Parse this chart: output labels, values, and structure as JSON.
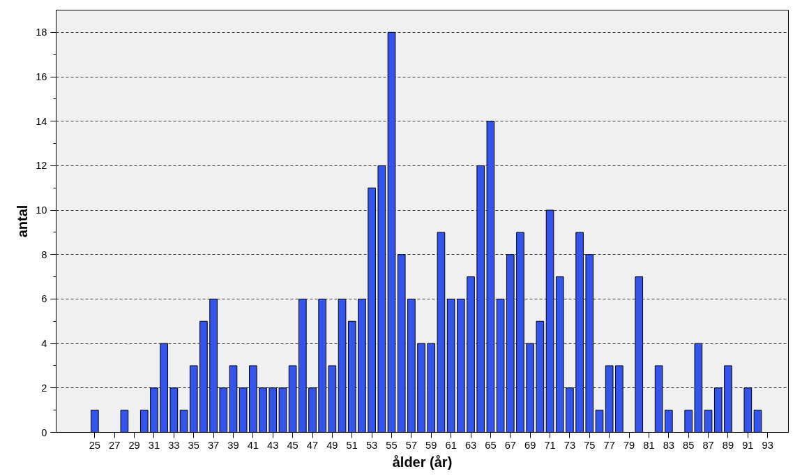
{
  "chart_data": {
    "type": "bar",
    "xlabel": "ålder (år)",
    "ylabel": "antal",
    "color": "#3355ee",
    "x": [
      25,
      26,
      27,
      28,
      29,
      30,
      31,
      32,
      33,
      34,
      35,
      36,
      37,
      38,
      39,
      40,
      41,
      42,
      43,
      44,
      45,
      46,
      47,
      48,
      49,
      50,
      51,
      52,
      53,
      54,
      55,
      56,
      57,
      58,
      59,
      60,
      61,
      62,
      63,
      64,
      65,
      66,
      67,
      68,
      69,
      70,
      71,
      72,
      73,
      74,
      75,
      76,
      77,
      78,
      79,
      80,
      81,
      82,
      83,
      84,
      85,
      86,
      87,
      88,
      89,
      90,
      91,
      92,
      93
    ],
    "values": [
      1,
      0,
      0,
      1,
      0,
      1,
      2,
      4,
      2,
      1,
      3,
      5,
      6,
      2,
      3,
      2,
      3,
      2,
      2,
      2,
      3,
      6,
      2,
      6,
      3,
      6,
      5,
      6,
      11,
      12,
      18,
      8,
      6,
      4,
      4,
      9,
      6,
      6,
      7,
      12,
      14,
      6,
      8,
      9,
      4,
      5,
      10,
      7,
      2,
      9,
      8,
      1,
      3,
      3,
      0,
      7,
      0,
      3,
      1,
      0,
      1,
      4,
      1,
      2,
      3,
      0,
      2,
      1,
      0
    ],
    "xlim": [
      21.1,
      95.1
    ],
    "xticks": [
      25,
      27,
      29,
      31,
      33,
      35,
      37,
      39,
      41,
      43,
      45,
      47,
      49,
      51,
      53,
      55,
      57,
      59,
      61,
      63,
      65,
      67,
      69,
      71,
      73,
      75,
      77,
      79,
      81,
      83,
      85,
      87,
      89,
      91,
      93
    ],
    "ylim": [
      0,
      19
    ],
    "yticks": [
      0,
      2,
      4,
      6,
      8,
      10,
      12,
      14,
      16,
      18
    ],
    "grid": "y"
  }
}
